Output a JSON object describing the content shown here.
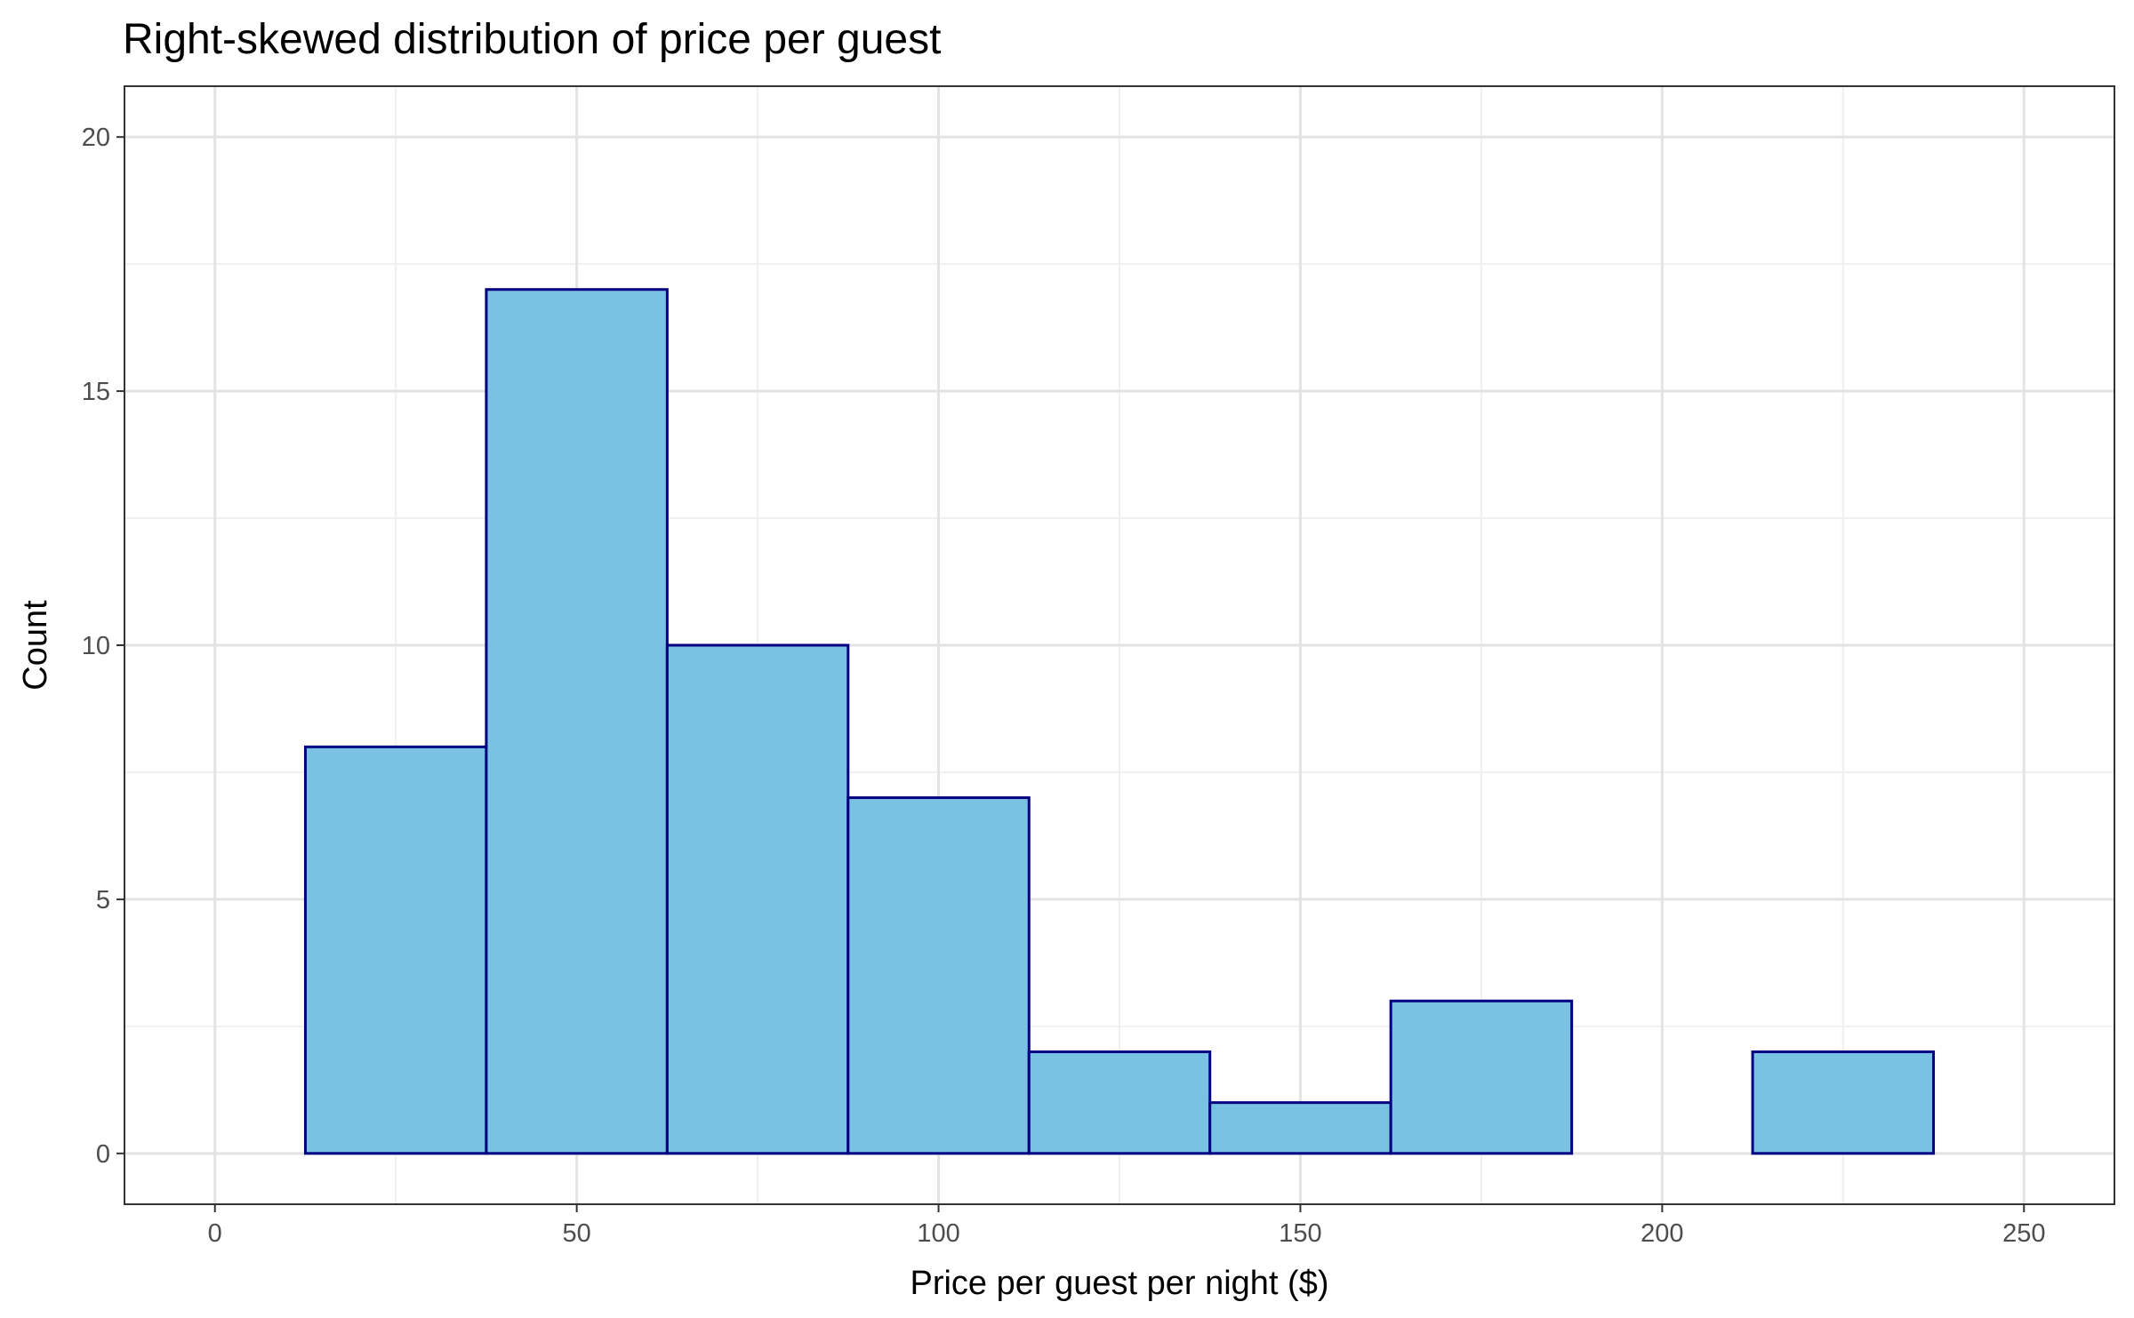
{
  "chart_data": {
    "type": "bar",
    "title": "Right-skewed distribution of price per guest",
    "xlabel": "Price per guest per night ($)",
    "ylabel": "Count",
    "xlim": [
      -12.5,
      262.5
    ],
    "ylim": [
      -1,
      21
    ],
    "x_ticks": [
      0,
      50,
      100,
      150,
      200,
      250
    ],
    "y_ticks": [
      0,
      5,
      10,
      15,
      20
    ],
    "bins": [
      {
        "x0": 12.5,
        "x1": 37.5,
        "count": 8
      },
      {
        "x0": 37.5,
        "x1": 62.5,
        "count": 17
      },
      {
        "x0": 62.5,
        "x1": 87.5,
        "count": 10
      },
      {
        "x0": 87.5,
        "x1": 112.5,
        "count": 7
      },
      {
        "x0": 112.5,
        "x1": 137.5,
        "count": 2
      },
      {
        "x0": 137.5,
        "x1": 162.5,
        "count": 1
      },
      {
        "x0": 162.5,
        "x1": 187.5,
        "count": 3
      },
      {
        "x0": 187.5,
        "x1": 212.5,
        "count": 0
      },
      {
        "x0": 212.5,
        "x1": 237.5,
        "count": 2
      }
    ],
    "grid": true,
    "colors": {
      "bar_fill": "#79c2e4",
      "bar_outline": "#000080",
      "grid_major": "#e3e3e3",
      "grid_minor": "#f0f0f0",
      "panel_border": "#333333"
    }
  }
}
